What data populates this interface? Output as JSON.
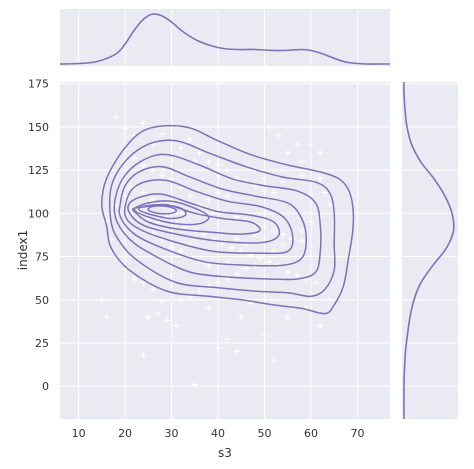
{
  "chart_data": {
    "type": "scatter",
    "subtype": "jointplot-kde",
    "xlabel": "s3",
    "ylabel": "index1",
    "xlim": [
      6,
      77
    ],
    "ylim": [
      -19,
      176
    ],
    "x_ticks": [
      10,
      20,
      30,
      40,
      50,
      60,
      70
    ],
    "y_ticks": [
      0,
      25,
      50,
      75,
      100,
      125,
      150,
      175
    ],
    "x_tick_labels": [
      "10",
      "20",
      "30",
      "40",
      "50",
      "60",
      "70"
    ],
    "y_tick_labels": [
      "0",
      "25",
      "50",
      "75",
      "100",
      "125",
      "150",
      "175"
    ],
    "grid": true,
    "line_color": "#7b72b8",
    "marker_color": "#ffffff",
    "marker": "plus",
    "points": [
      [
        18,
        156
      ],
      [
        20,
        149
      ],
      [
        22,
        145
      ],
      [
        24,
        152
      ],
      [
        26,
        140
      ],
      [
        28,
        146
      ],
      [
        30,
        150
      ],
      [
        32,
        138
      ],
      [
        34,
        143
      ],
      [
        36,
        135
      ],
      [
        38,
        130
      ],
      [
        40,
        128
      ],
      [
        42,
        125
      ],
      [
        44,
        120
      ],
      [
        46,
        118
      ],
      [
        48,
        116
      ],
      [
        50,
        113
      ],
      [
        52,
        112
      ],
      [
        54,
        118
      ],
      [
        56,
        120
      ],
      [
        58,
        122
      ],
      [
        60,
        125
      ],
      [
        62,
        120
      ],
      [
        63,
        112
      ],
      [
        64,
        105
      ],
      [
        62,
        98
      ],
      [
        60,
        95
      ],
      [
        58,
        90
      ],
      [
        56,
        85
      ],
      [
        54,
        82
      ],
      [
        52,
        78
      ],
      [
        50,
        75
      ],
      [
        48,
        70
      ],
      [
        46,
        68
      ],
      [
        44,
        65
      ],
      [
        42,
        62
      ],
      [
        40,
        60
      ],
      [
        38,
        58
      ],
      [
        36,
        55
      ],
      [
        34,
        52
      ],
      [
        32,
        50
      ],
      [
        30,
        50
      ],
      [
        28,
        49
      ],
      [
        26,
        56
      ],
      [
        24,
        60
      ],
      [
        22,
        62
      ],
      [
        20,
        68
      ],
      [
        18,
        75
      ],
      [
        17,
        85
      ],
      [
        16,
        95
      ],
      [
        18,
        105
      ],
      [
        20,
        110
      ],
      [
        22,
        115
      ],
      [
        24,
        112
      ],
      [
        26,
        108
      ],
      [
        28,
        105
      ],
      [
        30,
        102
      ],
      [
        25,
        96
      ],
      [
        27,
        95
      ],
      [
        29,
        98
      ],
      [
        31,
        94
      ],
      [
        33,
        92
      ],
      [
        35,
        90
      ],
      [
        37,
        88
      ],
      [
        39,
        85
      ],
      [
        41,
        83
      ],
      [
        43,
        80
      ],
      [
        45,
        78
      ],
      [
        47,
        76
      ],
      [
        49,
        74
      ],
      [
        51,
        72
      ],
      [
        53,
        70
      ],
      [
        55,
        66
      ],
      [
        57,
        64
      ],
      [
        59,
        62
      ],
      [
        61,
        60
      ],
      [
        44,
        98
      ],
      [
        46,
        96
      ],
      [
        48,
        94
      ],
      [
        50,
        92
      ],
      [
        52,
        90
      ],
      [
        54,
        88
      ],
      [
        56,
        86
      ],
      [
        58,
        84
      ],
      [
        42,
        110
      ],
      [
        40,
        112
      ],
      [
        38,
        108
      ],
      [
        36,
        105
      ],
      [
        34,
        110
      ],
      [
        32,
        115
      ],
      [
        30,
        120
      ],
      [
        28,
        122
      ],
      [
        26,
        125
      ],
      [
        24,
        128
      ],
      [
        22,
        132
      ],
      [
        20,
        130
      ],
      [
        55,
        135
      ],
      [
        57,
        140
      ],
      [
        53,
        145
      ],
      [
        51,
        150
      ],
      [
        25,
        40
      ],
      [
        27,
        42
      ],
      [
        29,
        38
      ],
      [
        31,
        35
      ],
      [
        24,
        18
      ],
      [
        40,
        22
      ],
      [
        42,
        27
      ],
      [
        44,
        20
      ],
      [
        50,
        30
      ],
      [
        52,
        15
      ],
      [
        55,
        40
      ],
      [
        59,
        45
      ],
      [
        62,
        35
      ],
      [
        64,
        50
      ],
      [
        15,
        50
      ],
      [
        16,
        40
      ],
      [
        35,
        130
      ],
      [
        48,
        125
      ],
      [
        50,
        120
      ],
      [
        58,
        130
      ],
      [
        60,
        140
      ],
      [
        62,
        135
      ],
      [
        21,
        115
      ],
      [
        23,
        102
      ],
      [
        26,
        88
      ],
      [
        28,
        85
      ],
      [
        30,
        80
      ],
      [
        32,
        78
      ],
      [
        34,
        82
      ],
      [
        36,
        72
      ],
      [
        38,
        70
      ],
      [
        40,
        75
      ],
      [
        42,
        72
      ],
      [
        44,
        85
      ],
      [
        46,
        82
      ],
      [
        48,
        88
      ],
      [
        35,
        1
      ],
      [
        38,
        45
      ],
      [
        45,
        40
      ],
      [
        47,
        48
      ]
    ],
    "kde_levels": [
      [
        [
          16,
          93
        ],
        [
          17,
          80
        ],
        [
          21,
          67
        ],
        [
          29,
          55
        ],
        [
          38,
          52
        ],
        [
          45,
          50
        ],
        [
          52,
          47
        ],
        [
          58,
          45
        ],
        [
          63,
          42
        ],
        [
          65,
          47
        ],
        [
          67,
          58
        ],
        [
          68,
          73
        ],
        [
          69,
          90
        ],
        [
          69,
          104
        ],
        [
          68,
          114
        ],
        [
          66,
          120
        ],
        [
          62,
          124
        ],
        [
          55,
          128
        ],
        [
          47,
          134
        ],
        [
          40,
          142
        ],
        [
          33,
          150
        ],
        [
          25,
          149
        ],
        [
          20,
          138
        ],
        [
          16,
          120
        ],
        [
          15,
          105
        ]
      ],
      [
        [
          17,
          95
        ],
        [
          19,
          83
        ],
        [
          23,
          72
        ],
        [
          31,
          60
        ],
        [
          40,
          57
        ],
        [
          48,
          55
        ],
        [
          55,
          54
        ],
        [
          60,
          52
        ],
        [
          63,
          56
        ],
        [
          65,
          67
        ],
        [
          65,
          82
        ],
        [
          65,
          100
        ],
        [
          64,
          112
        ],
        [
          61,
          118
        ],
        [
          54,
          121
        ],
        [
          46,
          127
        ],
        [
          38,
          135
        ],
        [
          31,
          142
        ],
        [
          25,
          140
        ],
        [
          20,
          130
        ],
        [
          17,
          115
        ]
      ],
      [
        [
          18,
          97
        ],
        [
          21,
          85
        ],
        [
          26,
          76
        ],
        [
          34,
          66
        ],
        [
          43,
          63
        ],
        [
          51,
          62
        ],
        [
          57,
          62
        ],
        [
          61,
          66
        ],
        [
          62,
          78
        ],
        [
          62,
          93
        ],
        [
          61,
          106
        ],
        [
          57,
          113
        ],
        [
          50,
          116
        ],
        [
          43,
          120
        ],
        [
          36,
          128
        ],
        [
          29,
          134
        ],
        [
          24,
          131
        ],
        [
          20,
          122
        ],
        [
          18,
          110
        ]
      ],
      [
        [
          19,
          98
        ],
        [
          22,
          88
        ],
        [
          28,
          80
        ],
        [
          37,
          72
        ],
        [
          46,
          70
        ],
        [
          54,
          70
        ],
        [
          58,
          74
        ],
        [
          59,
          85
        ],
        [
          58,
          97
        ],
        [
          55,
          106
        ],
        [
          48,
          110
        ],
        [
          41,
          114
        ],
        [
          34,
          121
        ],
        [
          28,
          127
        ],
        [
          23,
          124
        ],
        [
          20,
          116
        ],
        [
          19,
          106
        ]
      ],
      [
        [
          20,
          99
        ],
        [
          23,
          91
        ],
        [
          30,
          84
        ],
        [
          39,
          78
        ],
        [
          48,
          77
        ],
        [
          55,
          78
        ],
        [
          56,
          88
        ],
        [
          54,
          98
        ],
        [
          49,
          104
        ],
        [
          42,
          107
        ],
        [
          35,
          113
        ],
        [
          29,
          119
        ],
        [
          24,
          118
        ],
        [
          21,
          112
        ]
      ],
      [
        [
          21,
          100
        ],
        [
          24,
          93
        ],
        [
          31,
          88
        ],
        [
          40,
          84
        ],
        [
          49,
          83
        ],
        [
          53,
          87
        ],
        [
          52,
          95
        ],
        [
          47,
          99
        ],
        [
          40,
          101
        ],
        [
          34,
          106
        ],
        [
          28,
          111
        ],
        [
          24,
          110
        ],
        [
          21,
          106
        ]
      ],
      [
        [
          22,
          101
        ],
        [
          25,
          95
        ],
        [
          31,
          91
        ],
        [
          39,
          89
        ],
        [
          45,
          88
        ],
        [
          49,
          90
        ],
        [
          47,
          95
        ],
        [
          41,
          97
        ],
        [
          35,
          100
        ],
        [
          29,
          105
        ],
        [
          25,
          104
        ],
        [
          22,
          103
        ]
      ],
      [
        [
          22,
          102
        ],
        [
          26,
          97
        ],
        [
          31,
          94
        ],
        [
          36,
          94
        ],
        [
          38,
          98
        ],
        [
          35,
          103
        ],
        [
          30,
          107
        ],
        [
          25,
          106
        ]
      ],
      [
        [
          23,
          102
        ],
        [
          26,
          99
        ],
        [
          30,
          97
        ],
        [
          33,
          99
        ],
        [
          32,
          103
        ],
        [
          28,
          105
        ],
        [
          24,
          104
        ]
      ],
      [
        [
          25,
          102
        ],
        [
          27,
          100
        ],
        [
          30,
          100
        ],
        [
          31,
          102
        ],
        [
          29,
          104
        ],
        [
          26,
          104
        ]
      ]
    ],
    "marginal_x": {
      "x": [
        6,
        10,
        14,
        18,
        20,
        22,
        24,
        26,
        28,
        30,
        32,
        34,
        36,
        38,
        40,
        42,
        44,
        46,
        48,
        50,
        52,
        54,
        56,
        58,
        60,
        62,
        64,
        66,
        68,
        70,
        72,
        74,
        77
      ],
      "density": [
        0.0,
        0.01,
        0.05,
        0.2,
        0.4,
        0.68,
        0.9,
        1.0,
        0.96,
        0.84,
        0.68,
        0.55,
        0.45,
        0.38,
        0.33,
        0.3,
        0.29,
        0.29,
        0.29,
        0.28,
        0.27,
        0.27,
        0.28,
        0.29,
        0.27,
        0.22,
        0.15,
        0.08,
        0.03,
        0.01,
        0.0,
        0.0,
        0.0
      ]
    },
    "marginal_y": {
      "y": [
        -19,
        0,
        10,
        20,
        30,
        40,
        50,
        60,
        70,
        80,
        90,
        100,
        110,
        120,
        130,
        140,
        150,
        160,
        170,
        176
      ],
      "density": [
        0.0,
        0.0,
        0.01,
        0.03,
        0.07,
        0.12,
        0.2,
        0.34,
        0.58,
        0.85,
        0.99,
        0.96,
        0.82,
        0.6,
        0.33,
        0.15,
        0.06,
        0.02,
        0.0,
        0.0
      ]
    }
  }
}
